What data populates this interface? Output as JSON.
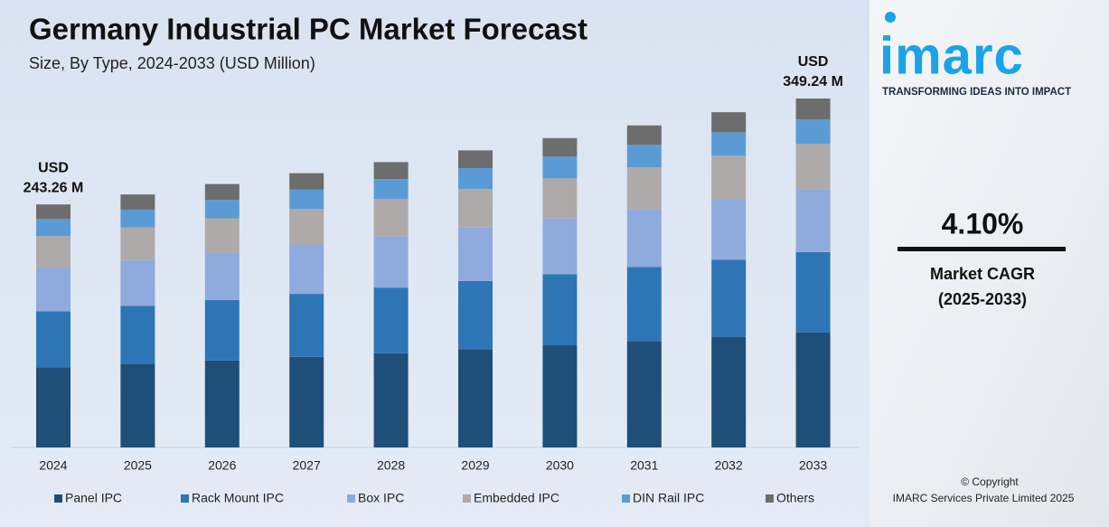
{
  "chart_data": {
    "type": "stacked-bar",
    "title": "Germany Industrial PC Market Forecast",
    "subtitle": "Size, By Type, 2024-2033 (USD Million)",
    "categories": [
      "2024",
      "2025",
      "2026",
      "2027",
      "2028",
      "2029",
      "2030",
      "2031",
      "2032",
      "2033"
    ],
    "series": [
      {
        "name": "Panel IPC",
        "color": "#1f4e79",
        "values": [
          80.3,
          83.6,
          87.0,
          90.6,
          94.3,
          98.1,
          102.2,
          106.4,
          110.7,
          115.2
        ]
      },
      {
        "name": "Rack Mount IPC",
        "color": "#2e75b6",
        "values": [
          55.9,
          58.2,
          60.6,
          63.1,
          65.7,
          68.4,
          71.2,
          74.1,
          77.2,
          80.3
        ]
      },
      {
        "name": "Box IPC",
        "color": "#8faadc",
        "values": [
          43.8,
          45.6,
          47.4,
          49.4,
          51.4,
          53.5,
          55.7,
          58.0,
          60.4,
          62.9
        ]
      },
      {
        "name": "Embedded IPC",
        "color": "#aeaaaa",
        "values": [
          31.6,
          32.9,
          34.3,
          35.7,
          37.1,
          38.7,
          40.2,
          41.9,
          43.6,
          45.4
        ]
      },
      {
        "name": "DIN Rail IPC",
        "color": "#5b9bd5",
        "values": [
          17.0,
          17.7,
          18.5,
          19.2,
          20.0,
          20.8,
          21.7,
          22.6,
          23.5,
          24.4
        ]
      },
      {
        "name": "Others",
        "color": "#6d6d6d",
        "values": [
          14.6,
          15.2,
          15.8,
          16.5,
          17.1,
          17.8,
          18.6,
          19.3,
          20.1,
          21.0
        ]
      }
    ],
    "annotations": [
      {
        "category": 0,
        "lines": [
          "USD",
          "243.26 M"
        ]
      },
      {
        "category": 9,
        "lines": [
          "USD",
          "349.24 M"
        ]
      }
    ],
    "legend": "bottom"
  },
  "sidebar": {
    "logo": "imarc",
    "tagline": "TRANSFORMING IDEAS INTO IMPACT",
    "cagr": "4.10%",
    "cagr_label": [
      "Market CAGR",
      "(2025-2033)"
    ],
    "copyright": [
      "© Copyright",
      "IMARC Services Private Limited 2025"
    ]
  }
}
